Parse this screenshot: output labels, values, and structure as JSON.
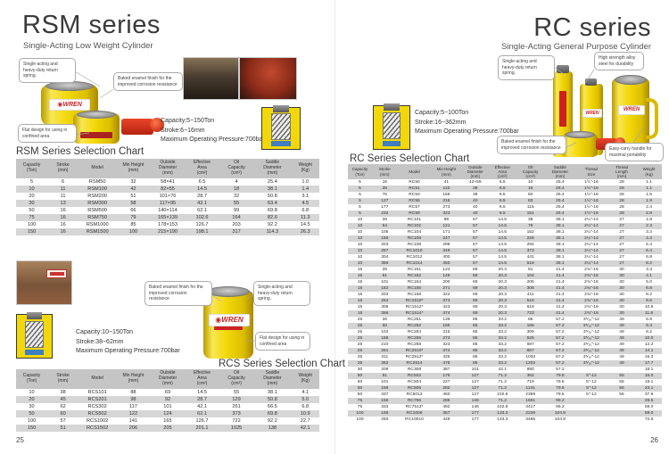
{
  "brand": {
    "logo": "WREN"
  },
  "left_page": {
    "title": "RSM series",
    "subtitle": "Single-Acting Low Weight Cylinder",
    "page_number": "25",
    "callouts": {
      "spring": "Single-acting and heavy-duty return spring.",
      "enamel": "Baked enamel finish for the improved corrosion resistance",
      "flat": "Flat design for using in confined area"
    },
    "specs_top": {
      "capacity": "Capacity:5~150Ton",
      "stroke": "Stroke:6~16mm",
      "pressure": "Maximum Operating Pressure:700bar"
    },
    "specs_bottom": {
      "capacity": "Capacity:10~150Ton",
      "stroke": "Stroke:38~62mm",
      "pressure": "Maximum Operating Pressure:700bar"
    },
    "rsm_chart": {
      "title": "RSM Series Selection Chart",
      "headers": [
        [
          "Capacity",
          "(Ton)"
        ],
        [
          "Stroke",
          "(mm)"
        ],
        [
          "Model"
        ],
        [
          "Min Height",
          "(mm)"
        ],
        [
          "Outside",
          "Diameter",
          "(mm)"
        ],
        [
          "Effective",
          "Area",
          "(cm²)"
        ],
        [
          "Oil",
          "Capacity",
          "(cm³)"
        ],
        [
          "Saddle",
          "Diameter",
          "(mm)"
        ],
        [
          "Weight",
          "(Kg)"
        ]
      ],
      "rows": [
        [
          "5",
          "6",
          "RSM50",
          "32",
          "58×41",
          "6.5",
          "4",
          "25.4",
          "1.0"
        ],
        [
          "10",
          "11",
          "RSM100",
          "42",
          "82×55",
          "14.5",
          "18",
          "38.1",
          "1.4"
        ],
        [
          "20",
          "11",
          "RSM200",
          "51",
          "101×76",
          "28.7",
          "32",
          "50.8",
          "3.1"
        ],
        [
          "30",
          "13",
          "RSM300",
          "58",
          "117×95",
          "42.1",
          "55",
          "63.4",
          "4.5"
        ],
        [
          "50",
          "16",
          "RSM500",
          "66",
          "140×114",
          "62.1",
          "99",
          "69.8",
          "6.8"
        ],
        [
          "75",
          "16",
          "RSM750",
          "79",
          "165×139",
          "102.6",
          "164",
          "82.6",
          "11.3"
        ],
        [
          "100",
          "16",
          "RSM1000",
          "85",
          "178×153",
          "126.7",
          "203",
          "92.2",
          "14.5"
        ],
        [
          "150",
          "16",
          "RSM1500",
          "100",
          "215×190",
          "198.1",
          "317",
          "114.3",
          "26.3"
        ]
      ]
    },
    "rcs_chart": {
      "title": "RCS Series Selection Chart",
      "headers": [
        [
          "Capacity",
          "(Ton)"
        ],
        [
          "Stroke",
          "(mm)"
        ],
        [
          "Model"
        ],
        [
          "Min Height",
          "(mm)"
        ],
        [
          "Outside",
          "Diameter",
          "(mm)"
        ],
        [
          "Effective",
          "Area",
          "(cm²)"
        ],
        [
          "Oil",
          "Capacity",
          "(cm³)"
        ],
        [
          "Saddle",
          "Diameter",
          "(mm)"
        ],
        [
          "Weight",
          "(Kg)"
        ]
      ],
      "rows": [
        [
          "10",
          "38",
          "RCS101",
          "88",
          "69",
          "14.5",
          "55",
          "38.1",
          "4.1"
        ],
        [
          "20",
          "45",
          "RCS201",
          "98",
          "92",
          "28.7",
          "129",
          "50.8",
          "5.0"
        ],
        [
          "30",
          "62",
          "RCS302",
          "117",
          "101",
          "42.1",
          "261",
          "66.5",
          "6.8"
        ],
        [
          "50",
          "60",
          "RCS502",
          "122",
          "124",
          "62.1",
          "373",
          "69.8",
          "10.9"
        ],
        [
          "100",
          "57",
          "RCS1002",
          "141",
          "165",
          "126.7",
          "722",
          "92.2",
          "22.7"
        ],
        [
          "150",
          "51",
          "RCS1502",
          "206",
          "205",
          "201.1",
          "1025",
          "138",
          "42.1"
        ]
      ]
    }
  },
  "right_page": {
    "title": "RC series",
    "subtitle": "Single-Acting General Purpose Cylinder",
    "page_number": "26",
    "callouts": {
      "spring": "Single-acting and heavy-duty return spring.",
      "alloy": "High strength alloy steel for durability",
      "enamel": "Baked enamel finish for the improved corrosion resistance",
      "handle": "Easy-carry handle for maximal portability"
    },
    "specs": {
      "capacity": "Capacity:5~100Ton",
      "stroke": "Stroke:16~362mm",
      "pressure": "Maximum Operating Pressure:700bar"
    },
    "rc_chart": {
      "title": "RC Series Selection Chart",
      "headers": [
        [
          "Capacity",
          "(Ton)"
        ],
        [
          "Stroke",
          "(mm)"
        ],
        [
          "Model"
        ],
        [
          "Min Height",
          "(mm)"
        ],
        [
          "Outside",
          "Diameter",
          "(mm)"
        ],
        [
          "Effective",
          "Area",
          "(cm²)"
        ],
        [
          "Oil",
          "Capacity",
          "(cm³)"
        ],
        [
          "Saddle",
          "Diameter",
          "(mm)"
        ],
        [
          "Thread",
          "Size"
        ],
        [
          "Thread",
          "Length",
          "(mm)"
        ],
        [
          "Weight",
          "(Kg)"
        ]
      ],
      "rows": [
        [
          "5",
          "16",
          "RC50",
          "41",
          "42×59",
          "6.5",
          "10",
          "25.4",
          "1½\"-16",
          "28",
          "1.1"
        ],
        [
          "5",
          "25",
          "RC51",
          "110",
          "38",
          "6.5",
          "16",
          "25.4",
          "1½\"-16",
          "28",
          "1.1"
        ],
        [
          "5",
          "76",
          "RC53",
          "165",
          "38",
          "6.5",
          "50",
          "25.4",
          "1½\"-16",
          "28",
          "1.5"
        ],
        [
          "5",
          "127",
          "RC55",
          "215",
          "40",
          "6.5",
          "83",
          "25.4",
          "1½\"-16",
          "28",
          "1.9"
        ],
        [
          "5",
          "177",
          "RC57",
          "273",
          "40",
          "6.5",
          "115",
          "25.4",
          "1½\"-16",
          "28",
          "2.4"
        ],
        [
          "5",
          "232",
          "RC59",
          "323",
          "40",
          "6.5",
          "151",
          "25.4",
          "1½\"-16",
          "28",
          "2.8"
        ],
        [
          "10",
          "26",
          "RC101",
          "89",
          "57",
          "14.5",
          "38",
          "38.1",
          "2¼\"-14",
          "27",
          "1.8"
        ],
        [
          "10",
          "54",
          "RC102",
          "121",
          "57",
          "14.5",
          "78",
          "38.1",
          "2¼\"-14",
          "27",
          "2.3"
        ],
        [
          "10",
          "105",
          "RC104",
          "171",
          "57",
          "14.5",
          "152",
          "38.1",
          "2¼\"-14",
          "27",
          "3.3"
        ],
        [
          "10",
          "156",
          "RC106",
          "247",
          "57",
          "14.5",
          "226",
          "38.1",
          "2¼\"-14",
          "27",
          "4.4"
        ],
        [
          "10",
          "203",
          "RC108",
          "298",
          "57",
          "14.5",
          "294",
          "38.1",
          "2¼\"-14",
          "27",
          "5.4"
        ],
        [
          "10",
          "257",
          "RC1010",
          "349",
          "57",
          "14.5",
          "373",
          "38.1",
          "2¼\"-14",
          "27",
          "6.4"
        ],
        [
          "10",
          "304",
          "RC1012",
          "400",
          "57",
          "14.5",
          "441",
          "38.1",
          "2¼\"-14",
          "27",
          "6.8"
        ],
        [
          "10",
          "356",
          "RC1014",
          "450",
          "57",
          "14.5",
          "516",
          "38.1",
          "2¼\"-14",
          "27",
          "8.2"
        ],
        [
          "15",
          "25",
          "RC151",
          "124",
          "69",
          "20.3",
          "51",
          "41.4",
          "2¾\"-16",
          "30",
          "3.3"
        ],
        [
          "15",
          "51",
          "RC152",
          "149",
          "69",
          "20.3",
          "104",
          "41.4",
          "2¾\"-16",
          "30",
          "4.1"
        ],
        [
          "15",
          "101",
          "RC154",
          "200",
          "69",
          "20.3",
          "205",
          "41.4",
          "2¾\"-16",
          "30",
          "5.0"
        ],
        [
          "15",
          "152",
          "RC156",
          "271",
          "69",
          "20.3",
          "308",
          "41.4",
          "2¾\"-16",
          "30",
          "6.8"
        ],
        [
          "15",
          "203",
          "RC158",
          "322",
          "69",
          "20.3",
          "411",
          "41.4",
          "2¾\"-16",
          "30",
          "8.2"
        ],
        [
          "15",
          "254",
          "RC1510*",
          "373",
          "69",
          "20.3",
          "516",
          "41.4",
          "2¾\"-16",
          "30",
          "9.5"
        ],
        [
          "15",
          "305",
          "RC1512*",
          "423",
          "69",
          "20.3",
          "619",
          "41.4",
          "2¾\"-16",
          "30",
          "10.9"
        ],
        [
          "15",
          "356",
          "RC1514*",
          "474",
          "69",
          "20.3",
          "723",
          "41.4",
          "2¾\"-16",
          "30",
          "11.8"
        ],
        [
          "25",
          "26",
          "RC251",
          "139",
          "85",
          "33.2",
          "86",
          "57.2",
          "3⁵⁄₁₆\"-12",
          "49",
          "5.9"
        ],
        [
          "25",
          "50",
          "RC252",
          "165",
          "85",
          "33.2",
          "166",
          "57.2",
          "3⁵⁄₁₆\"-12",
          "49",
          "6.4"
        ],
        [
          "25",
          "102",
          "RC254",
          "215",
          "85",
          "33.2",
          "309",
          "57.2",
          "3⁵⁄₁₆\"-12",
          "49",
          "8.2"
        ],
        [
          "25",
          "158",
          "RC256",
          "273",
          "85",
          "33.2",
          "525",
          "57.2",
          "3⁵⁄₁₆\"-12",
          "49",
          "10.0"
        ],
        [
          "25",
          "210",
          "RC258",
          "323",
          "85",
          "33.2",
          "697",
          "57.2",
          "3⁵⁄₁₆\"-12",
          "49",
          "12.2"
        ],
        [
          "25",
          "261",
          "RC2510*",
          "374",
          "85",
          "33.2",
          "867",
          "57.2",
          "3⁵⁄₁₆\"-12",
          "49",
          "14.1"
        ],
        [
          "25",
          "311",
          "RC2512*",
          "425",
          "85",
          "33.2",
          "1033",
          "57.2",
          "3⁵⁄₁₆\"-12",
          "49",
          "16.3"
        ],
        [
          "25",
          "362",
          "RC2514",
          "476",
          "85",
          "33.2",
          "1202",
          "57.2",
          "3⁵⁄₁₆\"-12",
          "49",
          "17.7"
        ],
        [
          "30",
          "209",
          "RC308",
          "387",
          "101",
          "42.1",
          "880",
          "57.2",
          "",
          "",
          "18.1"
        ],
        [
          "50",
          "51",
          "RC502",
          "176",
          "127",
          "71.2",
          "362",
          "79.5",
          "5\"-12",
          "55",
          "15.0"
        ],
        [
          "50",
          "101",
          "RC504",
          "227",
          "127",
          "71.2",
          "719",
          "79.5",
          "5\"-12",
          "55",
          "19.1"
        ],
        [
          "50",
          "159",
          "RC506",
          "282",
          "127",
          "71.2",
          "1131",
          "79.5",
          "5\"-12",
          "55",
          "23.1"
        ],
        [
          "50",
          "337",
          "RC5013",
          "460",
          "127",
          "102.6",
          "2399",
          "79.5",
          "5\"-12",
          "55",
          "37.6"
        ],
        [
          "75",
          "156",
          "RC756",
          "285",
          "146",
          "71.2",
          "1601",
          "95.2",
          "",
          "",
          "29.5"
        ],
        [
          "75",
          "333",
          "RC7513*",
          "492",
          "146",
          "102.6",
          "3417",
          "95.2",
          "",
          "",
          "59.0"
        ],
        [
          "100",
          "168",
          "RC1006",
          "357",
          "177",
          "133.3",
          "2239",
          "104.9",
          "",
          "",
          "59.0"
        ],
        [
          "100",
          "260",
          "RC10010",
          "449",
          "177",
          "133.3",
          "3466",
          "104.9",
          "",
          "",
          "72.6"
        ]
      ]
    }
  },
  "colors": {
    "accent_red": "#cc2222",
    "cylinder_yellow": "#f3d90a",
    "table_header_gray": "#c5c5c5",
    "table_alt_gray": "#d4d4d4"
  }
}
